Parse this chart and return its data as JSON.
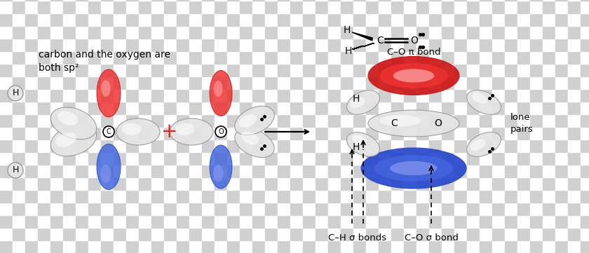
{
  "bg_white": "#ffffff",
  "bg_gray": "#d0d0d0",
  "blue_dark": "#2244cc",
  "blue_mid": "#4466dd",
  "blue_light": "#8899ee",
  "red_dark": "#cc1111",
  "red_mid": "#ee3333",
  "red_light": "#ffaaaa",
  "gray_dark": "#999999",
  "gray_mid": "#cccccc",
  "gray_light": "#e4e4e4",
  "gray_lighter": "#f0f0f0",
  "label_ch_sigma": "C–H σ bonds",
  "label_co_sigma": "C–O σ bond",
  "label_co_pi": "C–O π bond",
  "label_lone": "lone\npairs",
  "label_carbon_text": "carbon and the oxygen are\nboth sp²"
}
